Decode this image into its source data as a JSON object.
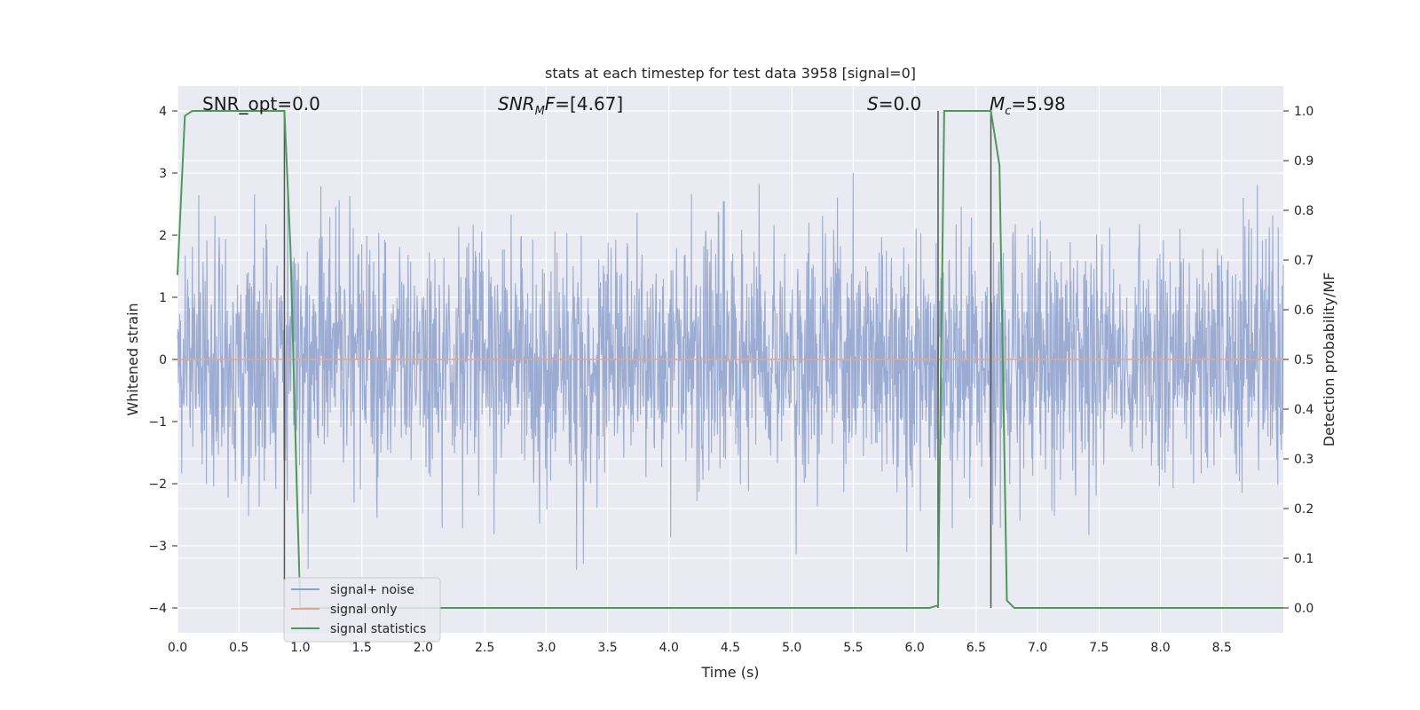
{
  "chart_data": {
    "type": "line",
    "title": "stats at each timestep for test data 3958 [signal=0]",
    "xlabel": "Time (s)",
    "ylabel": "Whitened strain",
    "y2label": "Detection probability/MF",
    "xlim": [
      0.0,
      9.0
    ],
    "ylim": [
      -4.4,
      4.4
    ],
    "y2lim": [
      -0.05,
      1.05
    ],
    "xticks": [
      "0.0",
      "0.5",
      "1.0",
      "1.5",
      "2.0",
      "2.5",
      "3.0",
      "3.5",
      "4.0",
      "4.5",
      "5.0",
      "5.5",
      "6.0",
      "6.5",
      "7.0",
      "7.5",
      "8.0",
      "8.5"
    ],
    "yticks": [
      "4",
      "3",
      "2",
      "1",
      "0",
      "−1",
      "−2",
      "−3",
      "−4"
    ],
    "y2ticks": [
      "1.0",
      "0.9",
      "0.8",
      "0.7",
      "0.6",
      "0.5",
      "0.4",
      "0.3",
      "0.2",
      "0.1",
      "0.0"
    ],
    "grid": true,
    "annotations": [
      {
        "text": "SNR_opt=0.0"
      },
      {
        "text": "SNR_MF=[4.67]"
      },
      {
        "text": "S=0.0"
      },
      {
        "text": "M_c=5.98"
      }
    ],
    "vlines_x": [
      0.87,
      6.19,
      6.62
    ],
    "series": [
      {
        "name": "signal+ noise",
        "color": "#8da0cb",
        "description": "whitened noise strain, ~N(0,1), peaks roughly ±4"
      },
      {
        "name": "signal only",
        "color": "#e5a58a",
        "values_note": "flat at 0"
      },
      {
        "name": "signal statistics",
        "color": "#4c9a5a",
        "axis": "right",
        "x": [
          0.0,
          0.06,
          0.12,
          0.2,
          0.5,
          0.75,
          0.87,
          0.92,
          0.97,
          1.0,
          2.0,
          3.0,
          4.0,
          5.0,
          6.0,
          6.12,
          6.19,
          6.24,
          6.3,
          6.5,
          6.62,
          6.69,
          6.75,
          6.81,
          7.0,
          8.0,
          9.0
        ],
        "values": [
          0.67,
          0.99,
          1.0,
          1.0,
          1.0,
          1.0,
          1.0,
          0.72,
          0.25,
          0.0,
          0.0,
          0.0,
          0.0,
          0.0,
          0.0,
          0.0,
          0.005,
          1.0,
          1.0,
          1.0,
          1.0,
          0.89,
          0.015,
          0.0,
          0.0,
          0.0,
          0.0
        ]
      }
    ],
    "legend": {
      "placement": "lower-left",
      "entries": [
        "signal+ noise",
        "signal only",
        "signal statistics"
      ]
    },
    "colors": {
      "background": "#eaeaf2",
      "grid": "#ffffff",
      "axis_text": "#262626",
      "vline": "#555555"
    }
  }
}
